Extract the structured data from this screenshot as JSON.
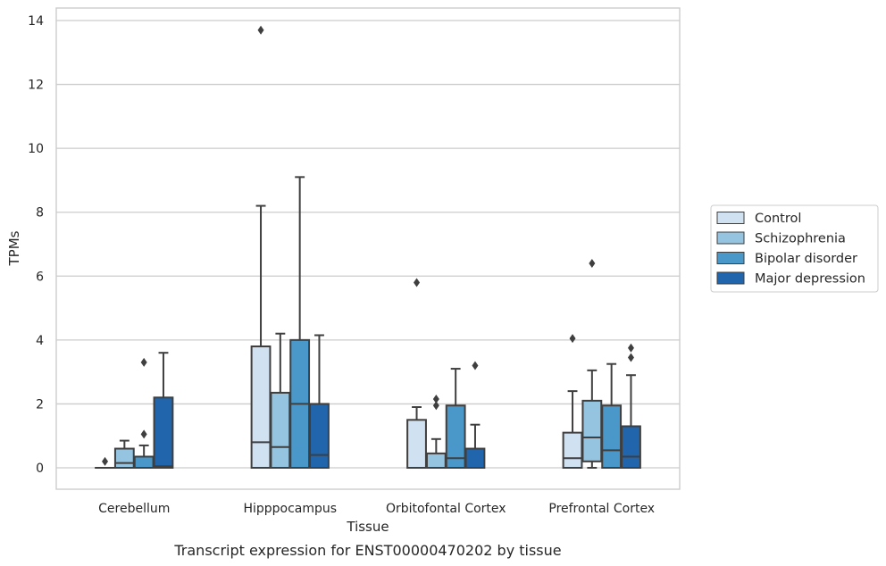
{
  "chart_data": {
    "type": "box",
    "title": "",
    "caption": "Transcript expression for ENST00000470202 by tissue",
    "xlabel": "Tissue",
    "ylabel": "TPMs",
    "ylim": [
      -0.65,
      14.4
    ],
    "yticks": [
      0,
      2,
      4,
      6,
      8,
      10,
      12,
      14
    ],
    "grid": "horizontal",
    "legend_position": "right",
    "categories": [
      "Cerebellum",
      "Hipppocampus",
      "Orbitofontal Cortex",
      "Prefrontal Cortex"
    ],
    "series": [
      {
        "name": "Control",
        "color": "#d0e1f2",
        "boxes": [
          {
            "min": 0,
            "q1": 0,
            "median": 0,
            "q3": 0,
            "max": 0,
            "outliers": [
              0.2
            ]
          },
          {
            "min": 0,
            "q1": 0,
            "median": 0.8,
            "q3": 3.8,
            "max": 8.2,
            "outliers": [
              13.7
            ]
          },
          {
            "min": 0,
            "q1": 0,
            "median": 0,
            "q3": 1.5,
            "max": 1.9,
            "outliers": [
              5.8
            ]
          },
          {
            "min": 0,
            "q1": 0,
            "median": 0.3,
            "q3": 1.1,
            "max": 2.4,
            "outliers": [
              4.05
            ]
          }
        ]
      },
      {
        "name": "Schizophrenia",
        "color": "#94c4df",
        "boxes": [
          {
            "min": 0,
            "q1": 0,
            "median": 0.15,
            "q3": 0.6,
            "max": 0.85,
            "outliers": []
          },
          {
            "min": 0,
            "q1": 0,
            "median": 0.65,
            "q3": 2.35,
            "max": 4.2,
            "outliers": []
          },
          {
            "min": 0,
            "q1": 0,
            "median": 0,
            "q3": 0.45,
            "max": 0.9,
            "outliers": [
              1.95,
              2.15
            ]
          },
          {
            "min": 0,
            "q1": 0.2,
            "median": 0.95,
            "q3": 2.1,
            "max": 3.05,
            "outliers": [
              6.4
            ]
          }
        ]
      },
      {
        "name": "Bipolar disorder",
        "color": "#4a98c9",
        "boxes": [
          {
            "min": 0,
            "q1": 0,
            "median": 0,
            "q3": 0.35,
            "max": 0.7,
            "outliers": [
              1.05,
              3.3
            ]
          },
          {
            "min": 0,
            "q1": 0,
            "median": 2.0,
            "q3": 4.0,
            "max": 9.1,
            "outliers": []
          },
          {
            "min": 0,
            "q1": 0,
            "median": 0.3,
            "q3": 1.95,
            "max": 3.1,
            "outliers": []
          },
          {
            "min": 0,
            "q1": 0,
            "median": 0.55,
            "q3": 1.95,
            "max": 3.25,
            "outliers": []
          }
        ]
      },
      {
        "name": "Major depression",
        "color": "#2166ac",
        "boxes": [
          {
            "min": 0,
            "q1": 0,
            "median": 0.05,
            "q3": 2.2,
            "max": 3.6,
            "outliers": []
          },
          {
            "min": 0,
            "q1": 0,
            "median": 0.4,
            "q3": 2.0,
            "max": 4.15,
            "outliers": []
          },
          {
            "min": 0,
            "q1": 0,
            "median": 0,
            "q3": 0.6,
            "max": 1.35,
            "outliers": [
              3.2
            ]
          },
          {
            "min": 0,
            "q1": 0,
            "median": 0.35,
            "q3": 1.3,
            "max": 2.9,
            "outliers": [
              3.45,
              3.75
            ]
          }
        ]
      }
    ]
  }
}
